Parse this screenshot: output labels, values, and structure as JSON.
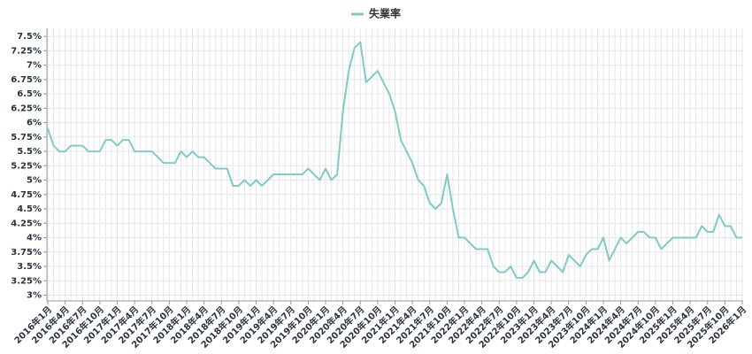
{
  "chart_data": {
    "type": "line",
    "categories": [
      "2016年1月",
      null,
      null,
      "2016年4月",
      null,
      null,
      "2016年7月",
      null,
      null,
      "2016年10月",
      null,
      null,
      "2017年1月",
      null,
      null,
      "2017年4月",
      null,
      null,
      "2017年7月",
      null,
      null,
      "2017年10月",
      null,
      null,
      "2018年1月",
      null,
      null,
      "2018年4月",
      null,
      null,
      "2018年7月",
      null,
      null,
      "2018年10月",
      null,
      null,
      "2019年1月",
      null,
      null,
      "2019年4月",
      null,
      null,
      "2019年7月",
      null,
      null,
      "2019年10月",
      null,
      null,
      "2020年1月",
      null,
      null,
      "2020年4月",
      null,
      null,
      "2020年7月",
      null,
      null,
      "2020年10月",
      null,
      null,
      "2021年1月",
      null,
      null,
      "2021年4月",
      null,
      null,
      "2021年7月",
      null,
      null,
      "2021年10月",
      null,
      null,
      "2022年1月",
      null,
      null,
      "2022年4月",
      null,
      null,
      "2022年7月",
      null,
      null,
      "2022年10月",
      null,
      null,
      "2023年1月",
      null,
      null,
      "2023年4月",
      null,
      null,
      "2023年7月",
      null,
      null,
      "2023年10月",
      null,
      null,
      "2024年1月",
      null,
      null,
      "2024年4月",
      null,
      null,
      "2024年7月",
      null,
      null,
      "2024年10月",
      null,
      null,
      "2025年1月",
      null,
      null,
      "2025年4月",
      null,
      null,
      "2025年7月",
      null,
      null,
      "2025年10月",
      null,
      null,
      "2026年1月"
    ],
    "series": [
      {
        "name": "失業率",
        "color": "#80cbc4",
        "values": [
          5.9,
          5.6,
          5.5,
          5.5,
          5.6,
          5.6,
          5.6,
          5.5,
          5.5,
          5.5,
          5.7,
          5.7,
          5.6,
          5.7,
          5.7,
          5.5,
          5.5,
          5.5,
          5.5,
          5.4,
          5.3,
          5.3,
          5.3,
          5.5,
          5.4,
          5.5,
          5.4,
          5.4,
          5.3,
          5.2,
          5.2,
          5.2,
          4.9,
          4.9,
          5.0,
          4.9,
          5.0,
          4.9,
          5.0,
          5.1,
          5.1,
          5.1,
          5.1,
          5.1,
          5.1,
          5.2,
          5.1,
          5.0,
          5.2,
          5.0,
          5.1,
          6.2,
          6.9,
          7.3,
          7.4,
          6.7,
          6.8,
          6.9,
          6.7,
          6.5,
          6.2,
          5.7,
          5.5,
          5.3,
          5.0,
          4.9,
          4.6,
          4.5,
          4.6,
          5.1,
          4.5,
          4.0,
          4.0,
          3.9,
          3.8,
          3.8,
          3.8,
          3.5,
          3.4,
          3.4,
          3.5,
          3.3,
          3.3,
          3.4,
          3.6,
          3.4,
          3.4,
          3.6,
          3.5,
          3.4,
          3.7,
          3.6,
          3.5,
          3.7,
          3.8,
          3.8,
          4.0,
          3.6,
          3.8,
          4.0,
          3.9,
          4.0,
          4.1,
          4.1,
          4.0,
          4.0,
          3.8,
          3.9,
          4.0,
          4.0,
          4.0,
          4.0,
          4.0,
          4.2,
          4.1,
          4.1,
          4.4,
          4.2,
          4.2,
          4.0,
          4.0
        ]
      }
    ],
    "ylim": [
      2.9,
      7.64
    ],
    "yticks": [
      {
        "value": 3,
        "label": "3%"
      },
      {
        "value": 3.25,
        "label": "3.25%"
      },
      {
        "value": 3.5,
        "label": "3.5%"
      },
      {
        "value": 3.75,
        "label": "3.75%"
      },
      {
        "value": 4,
        "label": "4%"
      },
      {
        "value": 4.25,
        "label": "4.25%"
      },
      {
        "value": 4.5,
        "label": "4.5%"
      },
      {
        "value": 4.75,
        "label": "4.75%"
      },
      {
        "value": 5,
        "label": "5%"
      },
      {
        "value": 5.25,
        "label": "5.25%"
      },
      {
        "value": 5.5,
        "label": "5.5%"
      },
      {
        "value": 5.75,
        "label": "5.75%"
      },
      {
        "value": 6,
        "label": "6%"
      },
      {
        "value": 6.25,
        "label": "6.25%"
      },
      {
        "value": 6.5,
        "label": "6.5%"
      },
      {
        "value": 6.75,
        "label": "6.75%"
      },
      {
        "value": 7,
        "label": "7%"
      },
      {
        "value": 7.25,
        "label": "7.25%"
      },
      {
        "value": 7.5,
        "label": "7.5%"
      }
    ],
    "grid": true
  }
}
